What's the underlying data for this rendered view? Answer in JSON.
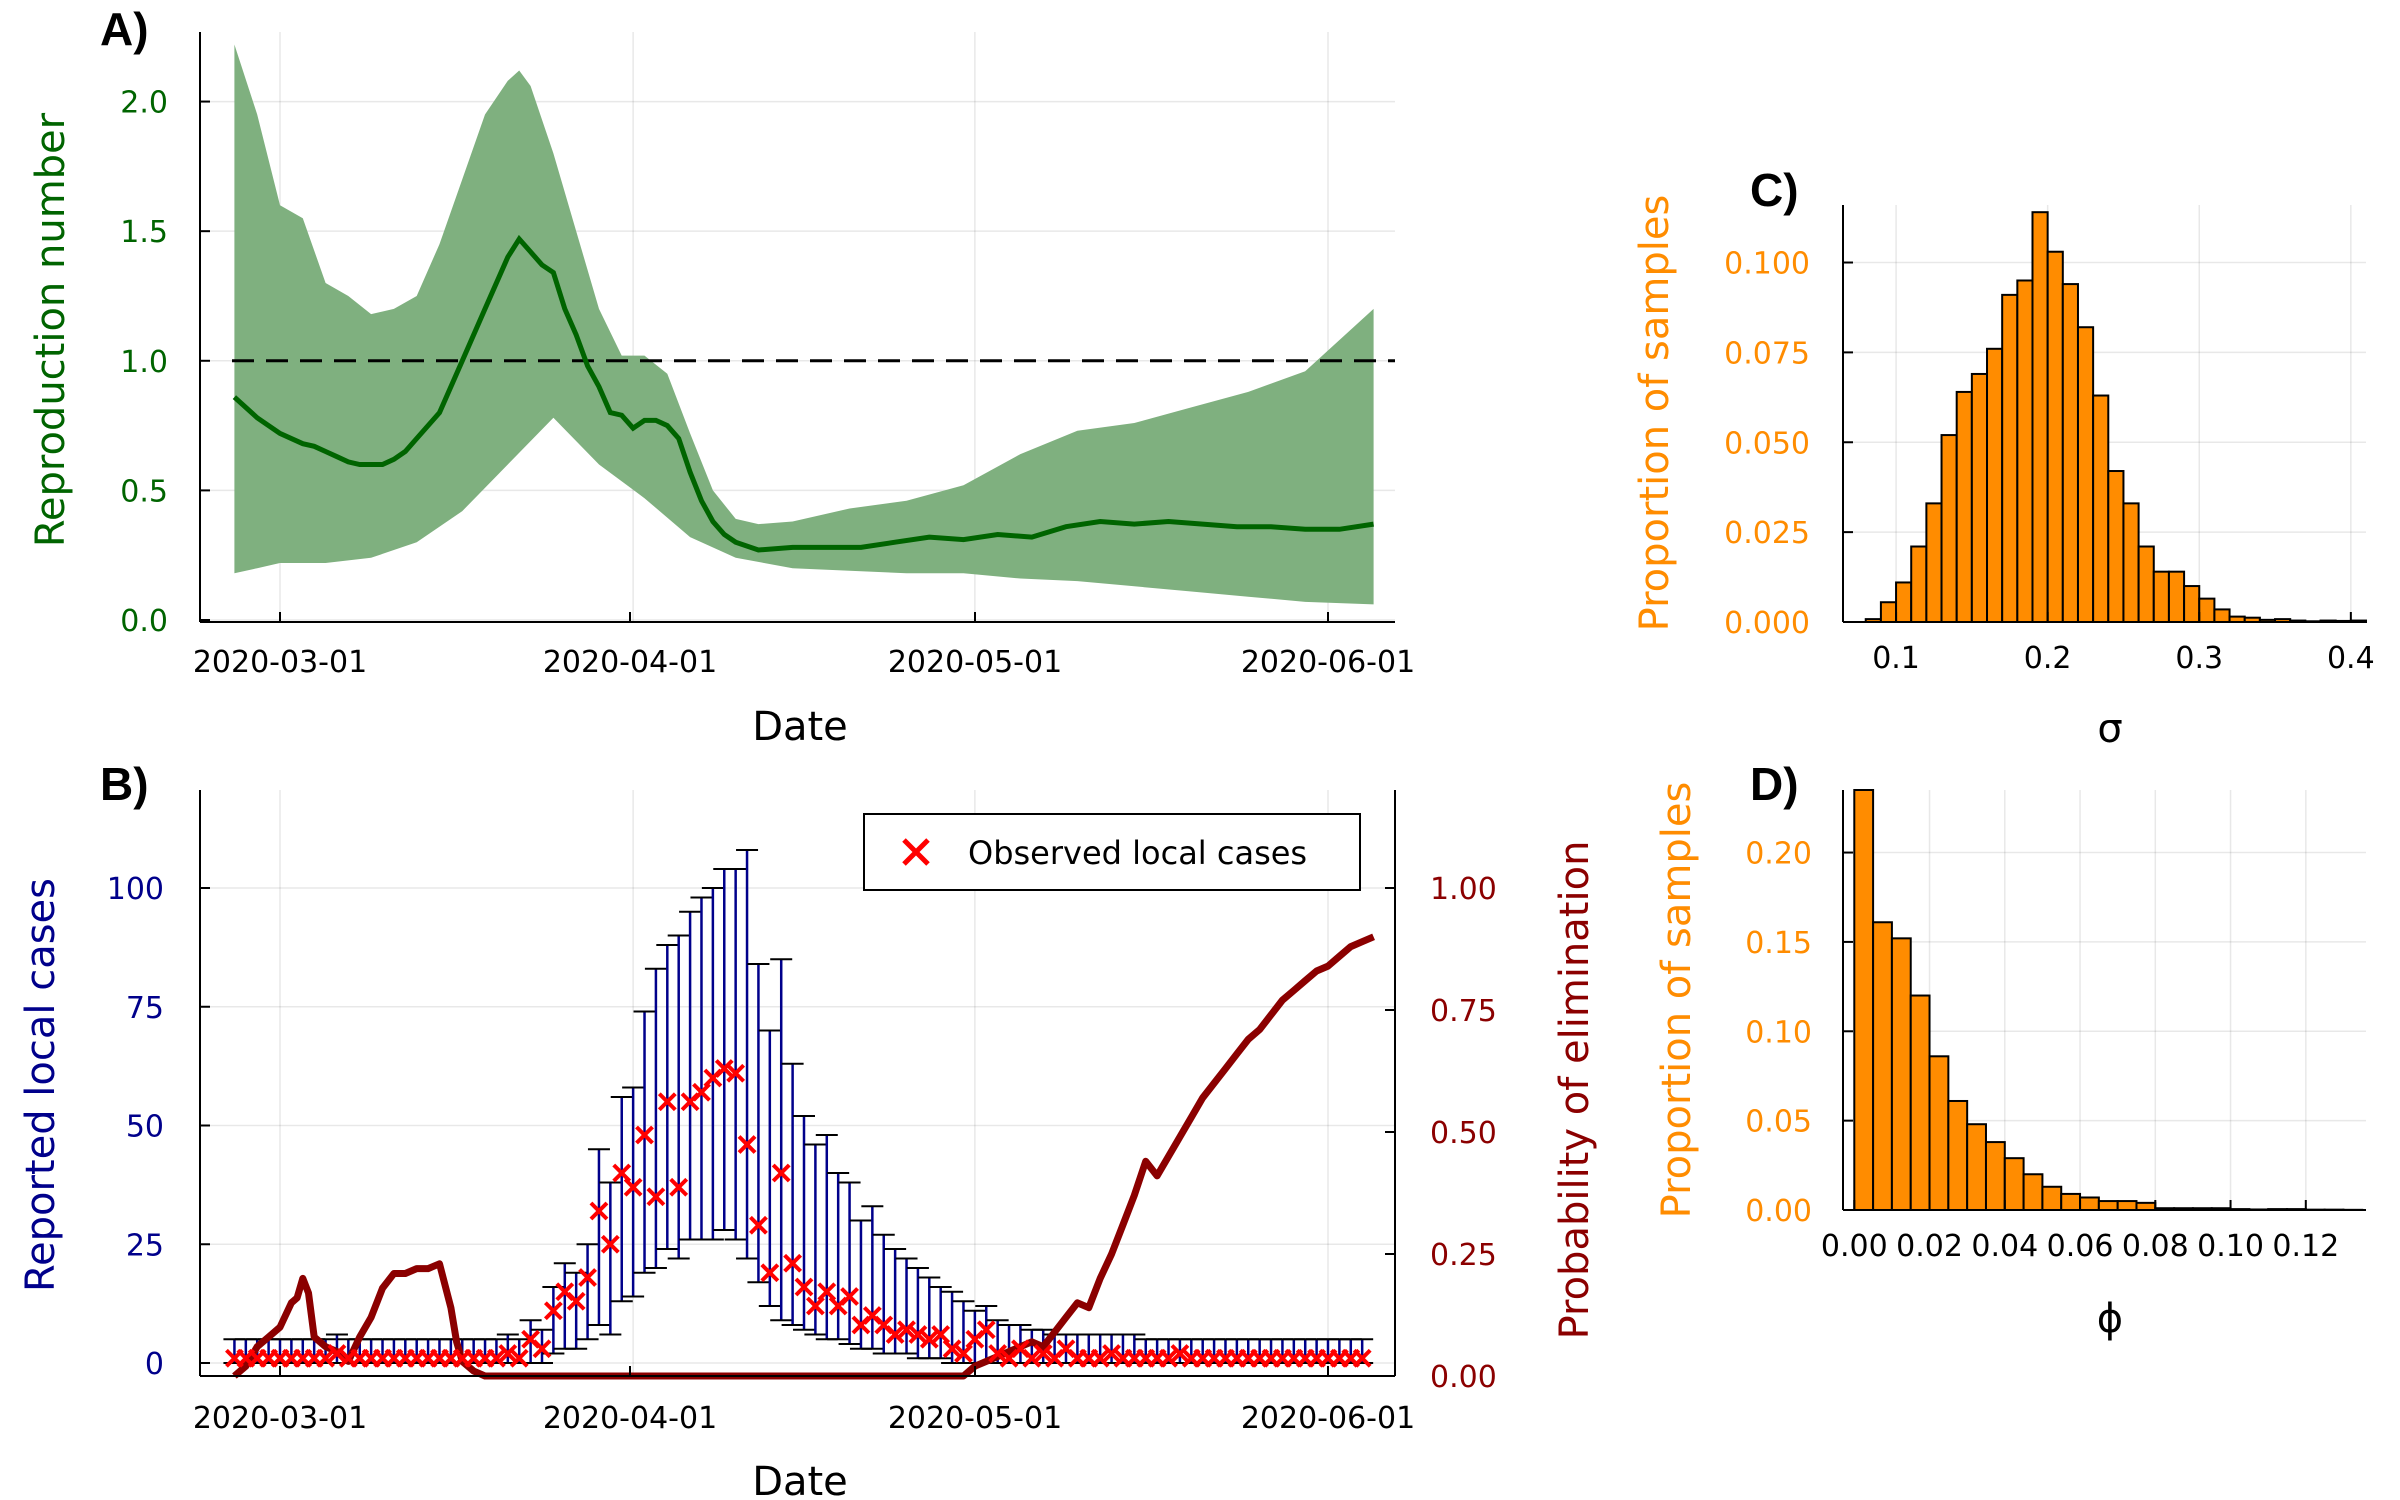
{
  "chart_data": [
    {
      "panel": "A)",
      "type": "line",
      "xlabel": "Date",
      "ylabel": "Reproduction number",
      "x_ticks": [
        "2020-03-01",
        "2020-04-01",
        "2020-05-01",
        "2020-06-01"
      ],
      "y_ticks": [
        "0.0",
        "0.5",
        "1.0",
        "1.5",
        "2.0"
      ],
      "ylim": [
        0,
        2.3
      ],
      "xlim_days": [
        -5,
        97
      ],
      "threshold": 1.0,
      "colors": {
        "median": "#006400",
        "band": "#7fb07f",
        "threshold": "#000000",
        "axis_text": "#006400"
      },
      "series": [
        {
          "name": "Median",
          "day": [
            -4,
            -2,
            0,
            2,
            3,
            4,
            5,
            6,
            7,
            8,
            9,
            10,
            11,
            12,
            14,
            16,
            18,
            20,
            21,
            22,
            23,
            24,
            25,
            26,
            27,
            28,
            29,
            30,
            31,
            32,
            33,
            34,
            35,
            36,
            37,
            38,
            39,
            40,
            42,
            45,
            48,
            51,
            54,
            57,
            60,
            63,
            66,
            69,
            72,
            75,
            78,
            81,
            84,
            87,
            90,
            93,
            96
          ],
          "values": [
            0.86,
            0.78,
            0.72,
            0.68,
            0.67,
            0.65,
            0.63,
            0.61,
            0.6,
            0.6,
            0.6,
            0.62,
            0.65,
            0.7,
            0.8,
            1.0,
            1.2,
            1.4,
            1.47,
            1.42,
            1.37,
            1.34,
            1.2,
            1.1,
            0.98,
            0.9,
            0.8,
            0.79,
            0.74,
            0.77,
            0.77,
            0.75,
            0.7,
            0.57,
            0.46,
            0.38,
            0.33,
            0.3,
            0.27,
            0.28,
            0.28,
            0.28,
            0.3,
            0.32,
            0.31,
            0.33,
            0.32,
            0.36,
            0.38,
            0.37,
            0.38,
            0.37,
            0.36,
            0.36,
            0.35,
            0.35,
            0.37
          ]
        },
        {
          "name": "Lower",
          "day": [
            -4,
            -2,
            0,
            4,
            8,
            12,
            16,
            20,
            24,
            28,
            32,
            36,
            40,
            45,
            50,
            55,
            60,
            65,
            70,
            75,
            80,
            85,
            90,
            96
          ],
          "values": [
            0.18,
            0.2,
            0.22,
            0.22,
            0.24,
            0.3,
            0.42,
            0.6,
            0.78,
            0.6,
            0.47,
            0.32,
            0.24,
            0.2,
            0.19,
            0.18,
            0.18,
            0.16,
            0.15,
            0.13,
            0.11,
            0.09,
            0.07,
            0.06
          ]
        },
        {
          "name": "Upper",
          "day": [
            -4,
            -2,
            0,
            2,
            4,
            6,
            8,
            10,
            12,
            14,
            16,
            18,
            20,
            21,
            22,
            24,
            26,
            28,
            30,
            32,
            34,
            36,
            38,
            40,
            42,
            45,
            50,
            55,
            60,
            65,
            70,
            75,
            80,
            85,
            90,
            96
          ],
          "values": [
            2.22,
            1.95,
            1.6,
            1.55,
            1.3,
            1.25,
            1.18,
            1.2,
            1.25,
            1.45,
            1.7,
            1.95,
            2.08,
            2.12,
            2.06,
            1.8,
            1.5,
            1.2,
            1.02,
            1.02,
            0.95,
            0.72,
            0.5,
            0.39,
            0.37,
            0.38,
            0.43,
            0.46,
            0.52,
            0.64,
            0.73,
            0.76,
            0.82,
            0.88,
            0.96,
            1.2
          ]
        }
      ]
    },
    {
      "panel": "B)",
      "type": "scatter",
      "xlabel": "Date",
      "ylabel": "Reported local cases",
      "ylabel_right": "Probability of elimination",
      "x_ticks": [
        "2020-03-01",
        "2020-04-01",
        "2020-05-01",
        "2020-06-01"
      ],
      "y_ticks": [
        "0",
        "25",
        "50",
        "75",
        "100"
      ],
      "y_ticks_right": [
        "0.00",
        "0.25",
        "0.50",
        "0.75",
        "1.00"
      ],
      "ylim": [
        -3,
        120
      ],
      "ylim_right": [
        -0.025,
        1.2
      ],
      "legend": {
        "label": "Observed local cases",
        "position": "top-right"
      },
      "colors": {
        "observed": "#ff0000",
        "interval": "#00008b",
        "caps": "#000000",
        "probability": "#8b0000",
        "axis_text_left": "#00008b",
        "axis_text_right": "#8b0000"
      },
      "observed": {
        "day_start": -4,
        "values": [
          1,
          1,
          1,
          1,
          1,
          1,
          1,
          1,
          1,
          2,
          1,
          1,
          1,
          1,
          1,
          1,
          1,
          1,
          1,
          1,
          1,
          1,
          1,
          1,
          2,
          1,
          5,
          3,
          11,
          15,
          13,
          18,
          32,
          25,
          40,
          37,
          48,
          35,
          55,
          37,
          55,
          57,
          60,
          62,
          61,
          46,
          29,
          19,
          40,
          21,
          16,
          12,
          15,
          12,
          14,
          8,
          10,
          8,
          6,
          7,
          6,
          5,
          6,
          3,
          2,
          5,
          7,
          2,
          1,
          3,
          1,
          2,
          1,
          3,
          1,
          1,
          1,
          2,
          1,
          1,
          1,
          1,
          1,
          2,
          1,
          1,
          1,
          1,
          1,
          1,
          1,
          1,
          1,
          1,
          1,
          1,
          1,
          1,
          1,
          1
        ]
      },
      "interval_upper": {
        "day_start": -4,
        "values": [
          5,
          5,
          5,
          5,
          5,
          5,
          5,
          5,
          5,
          6,
          5,
          5,
          5,
          5,
          5,
          5,
          5,
          5,
          5,
          5,
          5,
          5,
          5,
          5,
          6,
          5,
          9,
          7,
          16,
          21,
          19,
          25,
          45,
          38,
          56,
          58,
          74,
          83,
          88,
          90,
          95,
          98,
          100,
          104,
          104,
          108,
          84,
          70,
          85,
          63,
          52,
          46,
          48,
          40,
          38,
          30,
          33,
          27,
          24,
          22,
          20,
          18,
          16,
          15,
          13,
          11,
          12,
          9,
          8,
          8,
          7,
          7,
          6,
          6,
          6,
          6,
          6,
          6,
          6,
          6,
          5,
          5,
          5,
          5,
          5,
          5,
          5,
          5,
          5,
          5,
          5,
          5,
          5,
          5,
          5,
          5,
          5,
          5,
          5,
          5
        ]
      },
      "interval_lower": {
        "day_start": -4,
        "values": [
          0,
          0,
          0,
          0,
          0,
          0,
          0,
          0,
          0,
          0,
          0,
          0,
          0,
          0,
          0,
          0,
          0,
          0,
          0,
          0,
          0,
          0,
          0,
          0,
          0,
          0,
          0,
          0,
          2,
          3,
          3,
          5,
          8,
          6,
          13,
          14,
          19,
          20,
          24,
          22,
          26,
          26,
          26,
          28,
          26,
          22,
          17,
          12,
          9,
          8,
          7,
          6,
          5,
          5,
          4,
          3,
          3,
          2,
          2,
          2,
          1,
          1,
          1,
          0,
          0,
          0,
          0,
          0,
          0,
          0,
          0,
          0,
          0,
          0,
          0,
          0,
          0,
          0,
          0,
          0,
          0,
          0,
          0,
          0,
          0,
          0,
          0,
          0,
          0,
          0,
          0,
          0,
          0,
          0,
          0,
          0,
          0,
          0,
          0,
          0
        ]
      },
      "probability": {
        "day": [
          -4,
          -3,
          -2,
          -1,
          0,
          1,
          1.5,
          2,
          2.5,
          3,
          4,
          5,
          6,
          7,
          8,
          9,
          10,
          11,
          12,
          13,
          14,
          15,
          15.5,
          16,
          17,
          18,
          19,
          20,
          30,
          60,
          61,
          62,
          63,
          64,
          65,
          66,
          67,
          68,
          69,
          70,
          71,
          72,
          73,
          74,
          75,
          76,
          77,
          78,
          79,
          80,
          81,
          82,
          83,
          84,
          85,
          86,
          87,
          88,
          89,
          90,
          91,
          92,
          93,
          94,
          95,
          96
        ],
        "values": [
          0,
          0.02,
          0.06,
          0.08,
          0.1,
          0.15,
          0.16,
          0.2,
          0.17,
          0.08,
          0.06,
          0.05,
          0.03,
          0.08,
          0.12,
          0.18,
          0.21,
          0.21,
          0.22,
          0.22,
          0.23,
          0.14,
          0.07,
          0.03,
          0.01,
          0,
          0,
          0,
          0,
          0,
          0.02,
          0.03,
          0.04,
          0.05,
          0.06,
          0.07,
          0.06,
          0.09,
          0.12,
          0.15,
          0.14,
          0.2,
          0.25,
          0.31,
          0.37,
          0.44,
          0.41,
          0.45,
          0.49,
          0.53,
          0.57,
          0.6,
          0.63,
          0.66,
          0.69,
          0.71,
          0.74,
          0.77,
          0.79,
          0.81,
          0.83,
          0.84,
          0.86,
          0.88,
          0.89,
          0.9
        ]
      }
    },
    {
      "panel": "C)",
      "type": "bar",
      "xlabel": "σ",
      "ylabel": "Proportion of samples",
      "x_ticks": [
        "0.1",
        "0.2",
        "0.3",
        "0.4"
      ],
      "y_ticks": [
        "0.000",
        "0.025",
        "0.050",
        "0.075",
        "0.100"
      ],
      "xlim": [
        0.065,
        0.41
      ],
      "ylim": [
        0,
        0.116
      ],
      "colors": {
        "bar": "#ff8c00",
        "outline": "#000000",
        "axis_text": "#ff8c00"
      },
      "bin_start": 0.08,
      "bin_width": 0.01,
      "values": [
        0.0008,
        0.0055,
        0.011,
        0.021,
        0.033,
        0.052,
        0.064,
        0.069,
        0.076,
        0.091,
        0.095,
        0.114,
        0.103,
        0.094,
        0.082,
        0.063,
        0.042,
        0.033,
        0.021,
        0.014,
        0.014,
        0.01,
        0.0065,
        0.0035,
        0.0015,
        0.0012,
        0.0006,
        0.0008,
        0.0004,
        0.0002,
        0.0004,
        0.0003,
        0.0004
      ]
    },
    {
      "panel": "D)",
      "type": "bar",
      "xlabel": "ϕ",
      "ylabel": "Proportion of samples",
      "x_ticks": [
        "0.00",
        "0.02",
        "0.04",
        "0.06",
        "0.08",
        "0.10",
        "0.12"
      ],
      "y_ticks": [
        "0.00",
        "0.05",
        "0.10",
        "0.15",
        "0.20"
      ],
      "xlim": [
        -0.003,
        0.136
      ],
      "ylim": [
        0,
        0.235
      ],
      "colors": {
        "bar": "#ff8c00",
        "outline": "#000000",
        "axis_text": "#ff8c00"
      },
      "bin_start": 0.0,
      "bin_width": 0.005,
      "values": [
        0.235,
        0.161,
        0.152,
        0.12,
        0.086,
        0.061,
        0.048,
        0.038,
        0.029,
        0.02,
        0.013,
        0.009,
        0.007,
        0.005,
        0.005,
        0.004,
        0.001,
        0.001,
        0.001,
        0.001,
        0.0005,
        0.0003,
        0.0005,
        0.0005,
        0.0002,
        0.0002,
        0.0001
      ]
    }
  ]
}
